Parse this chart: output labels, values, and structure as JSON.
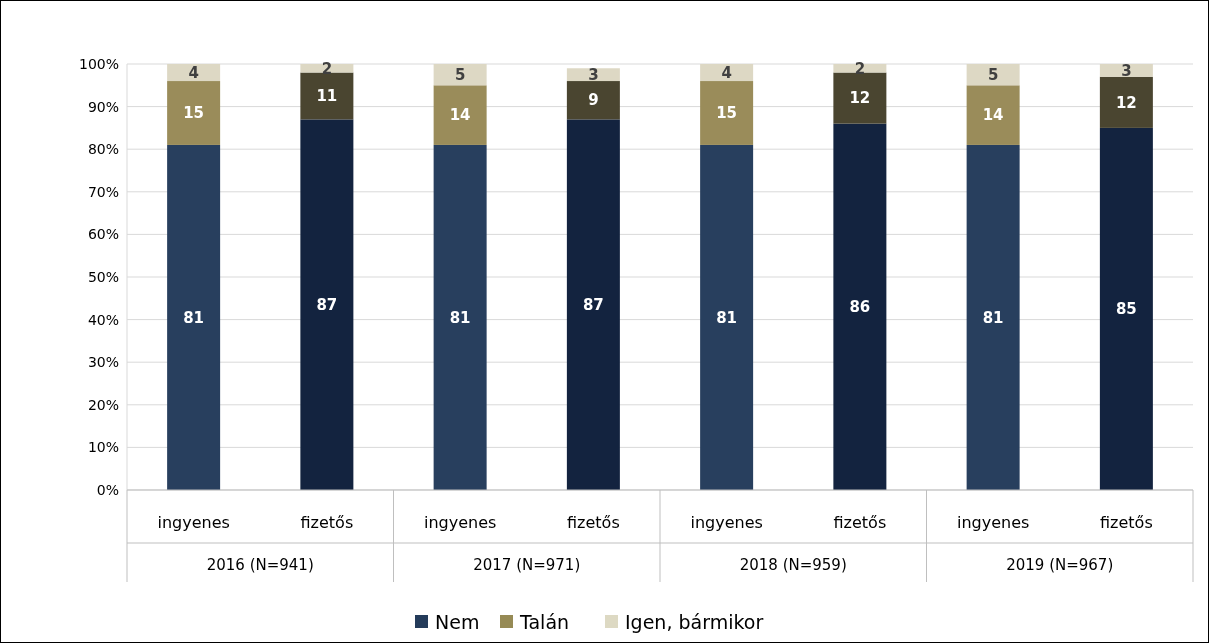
{
  "chart_data": {
    "type": "bar",
    "stacked": true,
    "categories": [
      "ingyenes",
      "fizetős",
      "ingyenes",
      "fizetős",
      "ingyenes",
      "fizetős",
      "ingyenes",
      "fizetős"
    ],
    "series": [
      {
        "name": "Nem",
        "color": "#243b5a",
        "colors": [
          "#283f5e",
          "#13233f",
          "#283f5e",
          "#13233f",
          "#283f5e",
          "#13233f",
          "#283f5e",
          "#13233f"
        ],
        "values": [
          81,
          87,
          81,
          87,
          81,
          86,
          81,
          85
        ]
      },
      {
        "name": "Talán",
        "color": "#968a55",
        "colors": [
          "#9a8c5a",
          "#4a4530",
          "#9a8c5a",
          "#4a4530",
          "#9a8c5a",
          "#4a4530",
          "#9a8c5a",
          "#4a4530"
        ],
        "values": [
          15,
          11,
          14,
          9,
          15,
          12,
          14,
          12
        ]
      },
      {
        "name": "Igen, bármikor",
        "color": "#ddd9c3",
        "colors": [
          "#ddd8c4",
          "#ddd8c4",
          "#ddd8c4",
          "#ddd8c4",
          "#ddd8c4",
          "#ddd8c4",
          "#ddd8c4",
          "#ddd8c4"
        ],
        "values": [
          4,
          2,
          5,
          3,
          4,
          2,
          5,
          3
        ]
      }
    ],
    "annotations": [
      "2016 (N=941)",
      "2017 (N=971)",
      "2018 (N=959)",
      "2019 (N=967)"
    ],
    "data_labels": true,
    "ylim": [
      0,
      100
    ],
    "yticks": [
      {
        "value": 0,
        "label": "0%"
      },
      {
        "value": 10,
        "label": "10%"
      },
      {
        "value": 20,
        "label": "20%"
      },
      {
        "value": 30,
        "label": "30%"
      },
      {
        "value": 40,
        "label": "40%"
      },
      {
        "value": 50,
        "label": "50%"
      },
      {
        "value": 60,
        "label": "60%"
      },
      {
        "value": 70,
        "label": "70%"
      },
      {
        "value": 80,
        "label": "80%"
      },
      {
        "value": 90,
        "label": "90%"
      },
      {
        "value": 100,
        "label": "100%"
      }
    ],
    "grid": "y",
    "legend": "bottom"
  }
}
